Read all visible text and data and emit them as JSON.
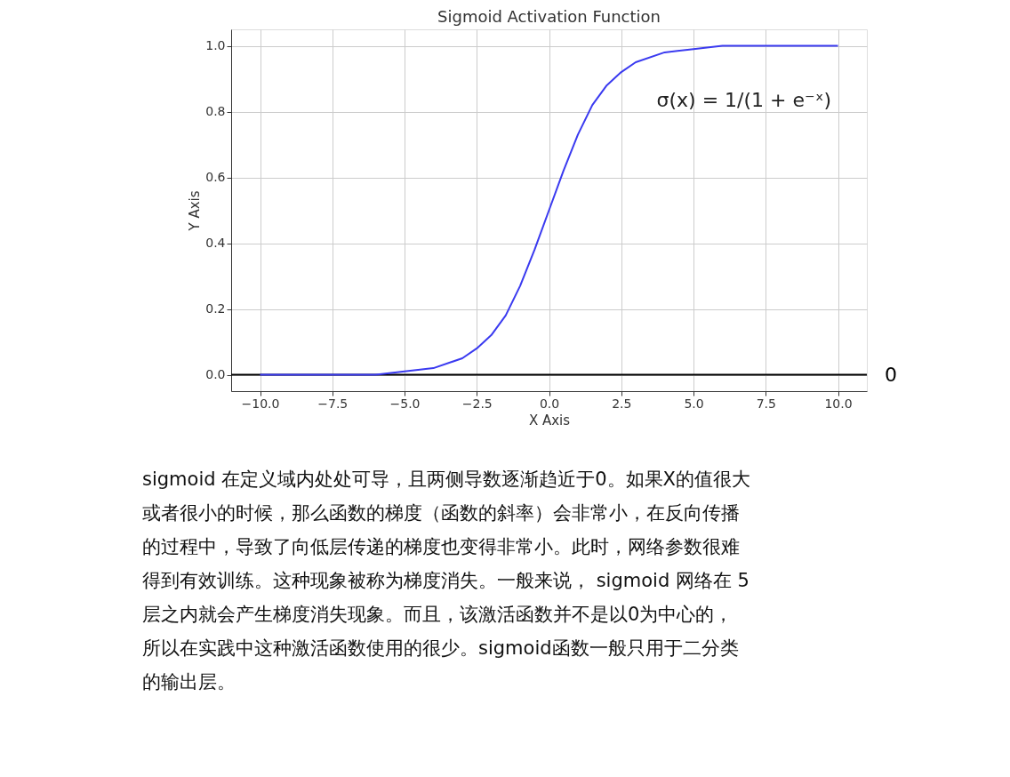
{
  "chart_data": {
    "type": "line",
    "title": "Sigmoid Activation Function",
    "xlabel": "X Axis",
    "ylabel": "Y Axis",
    "x": [
      -10,
      -9,
      -8,
      -7,
      -6,
      -5,
      -4,
      -3,
      -2.5,
      -2,
      -1.5,
      -1,
      -0.5,
      0,
      0.5,
      1,
      1.5,
      2,
      2.5,
      3,
      4,
      5,
      6,
      7,
      8,
      9,
      10
    ],
    "series": [
      {
        "color": "#3a3af0",
        "values": [
          0.0,
          0.0,
          0.0,
          0.0,
          0.0,
          0.01,
          0.02,
          0.05,
          0.08,
          0.12,
          0.18,
          0.27,
          0.38,
          0.5,
          0.62,
          0.73,
          0.82,
          0.88,
          0.92,
          0.95,
          0.98,
          0.99,
          1.0,
          1.0,
          1.0,
          1.0,
          1.0
        ]
      }
    ],
    "xlim": [
      -11,
      11
    ],
    "xticks": [
      {
        "value": -10,
        "label": "−10.0"
      },
      {
        "value": -7.5,
        "label": "−7.5"
      },
      {
        "value": -5,
        "label": "−5.0"
      },
      {
        "value": -2.5,
        "label": "−2.5"
      },
      {
        "value": 0,
        "label": "0.0"
      },
      {
        "value": 2.5,
        "label": "2.5"
      },
      {
        "value": 5,
        "label": "5.0"
      },
      {
        "value": 7.5,
        "label": "7.5"
      },
      {
        "value": 10,
        "label": "10.0"
      }
    ],
    "ylim": [
      -0.05,
      1.05
    ],
    "yticks": [
      {
        "value": 0,
        "label": "0.0"
      },
      {
        "value": 0.2,
        "label": "0.2"
      },
      {
        "value": 0.4,
        "label": "0.4"
      },
      {
        "value": 0.6,
        "label": "0.6"
      },
      {
        "value": 0.8,
        "label": "0.8"
      },
      {
        "value": 1,
        "label": "1.0"
      }
    ],
    "grid": true,
    "ref_lines": [
      {
        "axis": "y",
        "value": 0,
        "label": "0",
        "color": "#000000"
      }
    ],
    "annotations": [
      "σ(x) = 1/(1 + e⁻ˣ)",
      "sigmoid 在定义域内处处可导，且两侧导数逐渐趋近于0。如果X的值很大",
      "或者很小的时候，那么函数的梯度（函数的斜率）会非常小，在反向传播",
      "的过程中，导致了向低层传递的梯度也变得非常小。此时，网络参数很难",
      "得到有效训练。这种现象被称为梯度消失。一般来说， sigmoid 网络在 5",
      "层之内就会产生梯度消失现象。而且，该激活函数并不是以0为中心的，",
      "所以在实践中这种激活函数使用的很少。sigmoid函数一般只用于二分类",
      "的输出层。"
    ]
  }
}
